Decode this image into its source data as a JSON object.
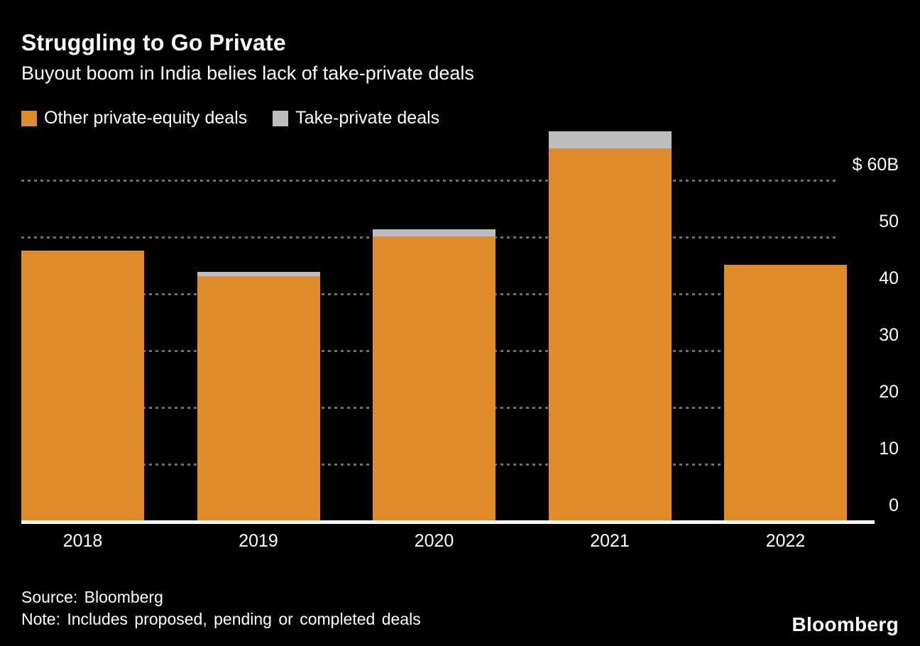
{
  "header": {
    "title": "Struggling to Go Private",
    "subtitle": "Buyout boom in India belies lack of take-private deals"
  },
  "legend": {
    "items": [
      {
        "label": "Other private-equity deals",
        "color": "#E18A28"
      },
      {
        "label": "Take-private deals",
        "color": "#BDBDBD"
      }
    ]
  },
  "chart_data": {
    "type": "bar",
    "stacked": true,
    "title": "Struggling to Go Private",
    "subtitle": "Buyout boom in India belies lack of take-private deals",
    "categories": [
      "2018",
      "2019",
      "2020",
      "2021",
      "2022"
    ],
    "series": [
      {
        "name": "Other private-equity deals",
        "color": "#E18A28",
        "values": [
          47.5,
          43,
          50,
          65.5,
          45
        ]
      },
      {
        "name": "Take-private deals",
        "color": "#BDBDBD",
        "values": [
          0,
          0.7,
          1.2,
          3,
          0
        ]
      }
    ],
    "unit": "$B",
    "ylim": [
      0,
      70
    ],
    "yticks": [
      {
        "value": 0,
        "label": "0"
      },
      {
        "value": 10,
        "label": "10"
      },
      {
        "value": 20,
        "label": "20"
      },
      {
        "value": 30,
        "label": "30"
      },
      {
        "value": 40,
        "label": "40"
      },
      {
        "value": 50,
        "label": "50"
      },
      {
        "value": 60,
        "label": "$ 60B"
      }
    ],
    "grid": "dashed-horizontal",
    "legend_position": "top",
    "y_axis_side": "right"
  },
  "footer": {
    "source": "Source: Bloomberg",
    "note": "Note: Includes proposed, pending or completed deals",
    "logo": "Bloomberg"
  },
  "colors": {
    "background": "#000000",
    "text": "#ffffff",
    "gridline": "#8a8a8a",
    "axis_line": "#ffffff",
    "bar_orange": "#E18A28",
    "bar_gray": "#BDBDBD"
  }
}
